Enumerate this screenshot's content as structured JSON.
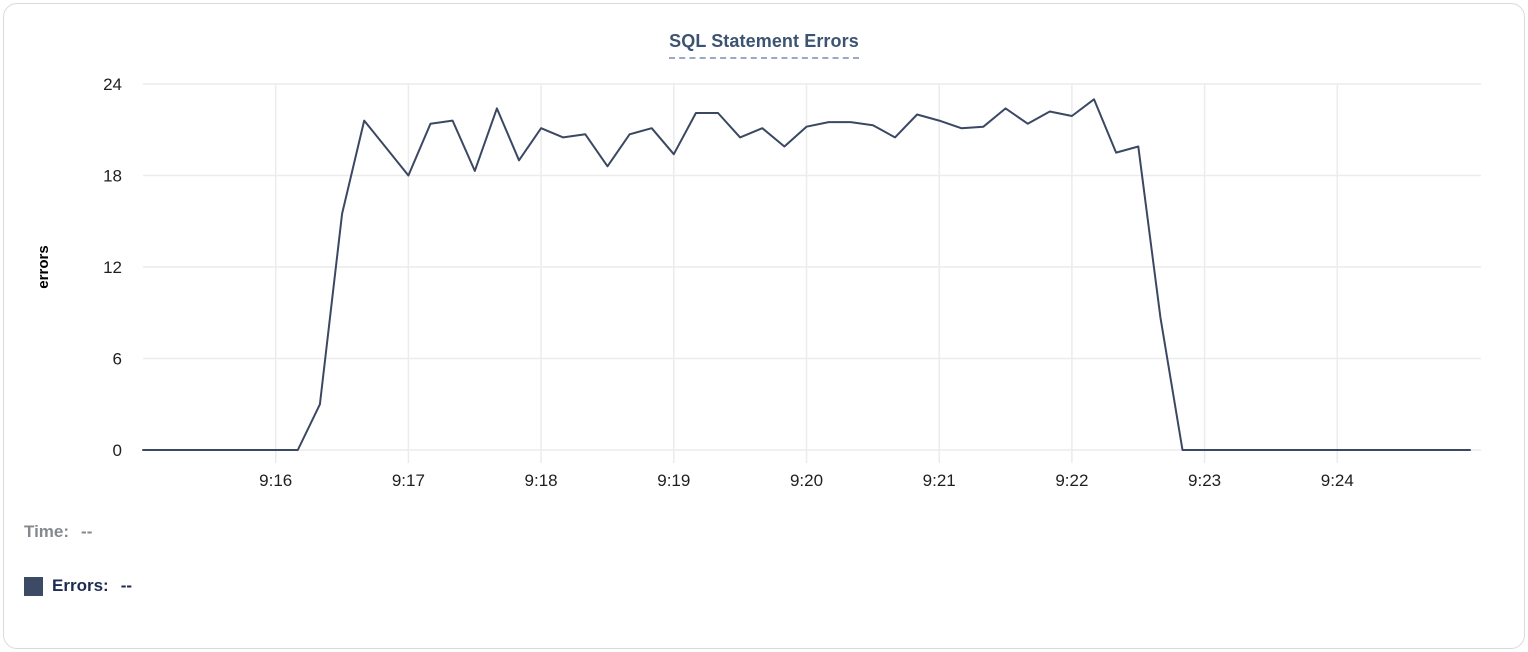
{
  "card": {
    "title": "SQL Statement Errors"
  },
  "legend": {
    "time_label": "Time:",
    "time_value": "--",
    "errors_label": "Errors:",
    "errors_value": "--",
    "swatch_color": "#3d4a66"
  },
  "colors": {
    "title_text": "#3d5372",
    "title_underline": "#9aa9c6",
    "line": "#3b4862",
    "grid": "#ececec",
    "tick_label": "#1f1f1f",
    "axis_label": "#000000",
    "time_text": "#85898f",
    "errors_text": "#1c2b52",
    "card_border": "#d9dade"
  },
  "chart_data": {
    "type": "line",
    "title": "SQL Statement Errors",
    "xlabel": "",
    "ylabel": "errors",
    "ylim": [
      0,
      24
    ],
    "y_ticks": [
      0,
      6,
      12,
      18,
      24
    ],
    "x_tick_labels": [
      "9:16",
      "9:17",
      "9:18",
      "9:19",
      "9:20",
      "9:21",
      "9:22",
      "9:23",
      "9:24"
    ],
    "x_tick_minute_offsets": [
      1,
      2,
      3,
      4,
      5,
      6,
      7,
      8,
      9
    ],
    "x_range_start": "9:15:00",
    "x_range_end": "9:25:00",
    "sample_interval_seconds": 10,
    "grid": true,
    "legend_position": "bottom-left",
    "series": [
      {
        "name": "Errors",
        "color": "#3b4862",
        "values": [
          0,
          0,
          0,
          0,
          0,
          0,
          0,
          0,
          3,
          15.5,
          21.6,
          19.8,
          18,
          21.4,
          21.6,
          18.3,
          22.4,
          19,
          21.1,
          20.5,
          20.7,
          18.6,
          20.7,
          21.1,
          19.4,
          22.1,
          22.1,
          20.5,
          21.1,
          19.9,
          21.2,
          21.5,
          21.5,
          21.3,
          20.5,
          22,
          21.6,
          21.1,
          21.2,
          22.4,
          21.4,
          22.2,
          21.9,
          23,
          19.5,
          19.9,
          8.7,
          0,
          0,
          0,
          0,
          0,
          0,
          0,
          0,
          0,
          0,
          0,
          0,
          0,
          0
        ]
      }
    ]
  }
}
